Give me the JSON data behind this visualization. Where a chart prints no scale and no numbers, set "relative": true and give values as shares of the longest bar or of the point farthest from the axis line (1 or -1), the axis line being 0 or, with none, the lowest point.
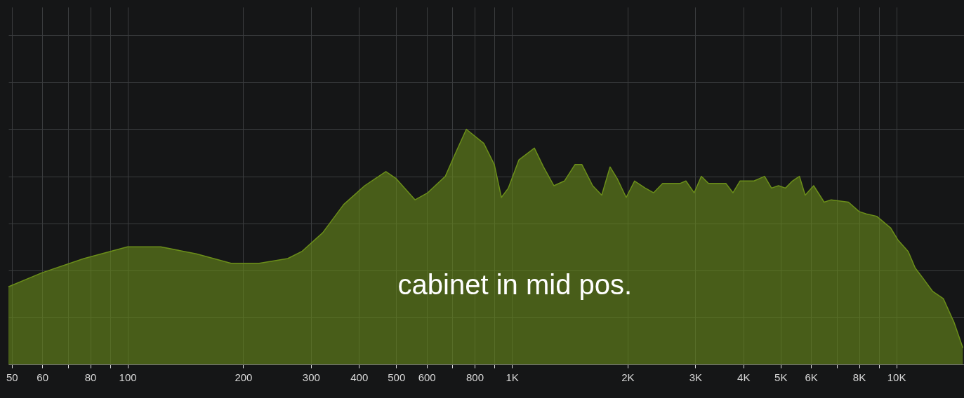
{
  "chart_data": {
    "type": "area",
    "relative": true,
    "log": "x",
    "grid": true,
    "annotations": [
      "cabinet in mid pos."
    ],
    "xlim": [
      49,
      15000
    ],
    "xticks": [
      50,
      60,
      {
        "value": 70,
        "label": null
      },
      80,
      {
        "value": 90,
        "label": null
      },
      100,
      200,
      300,
      400,
      500,
      600,
      {
        "value": 700,
        "label": null
      },
      800,
      {
        "value": 900,
        "label": null
      },
      {
        "value": 1000,
        "label": "1K"
      },
      {
        "value": 2000,
        "label": "2K"
      },
      {
        "value": 3000,
        "label": "3K"
      },
      {
        "value": 4000,
        "label": "4K"
      },
      {
        "value": 5000,
        "label": "5K"
      },
      {
        "value": 6000,
        "label": "6K"
      },
      {
        "value": 7000,
        "label": null
      },
      {
        "value": 8000,
        "label": "8K"
      },
      {
        "value": 9000,
        "label": null
      },
      {
        "value": 10000,
        "label": "10K"
      }
    ],
    "series": [
      {
        "color": "#6b8e1a",
        "x": [
          49,
          60,
          77,
          100,
          122,
          151,
          186,
          220,
          261,
          284,
          322,
          365,
          414,
          470,
          500,
          560,
          604,
          671,
          714,
          761,
          845,
          900,
          939,
          979,
          1043,
          1144,
          1208,
          1286,
          1370,
          1459,
          1521,
          1622,
          1713,
          1800,
          1879,
          1983,
          2085,
          2222,
          2337,
          2467,
          2574,
          2742,
          2836,
          2980,
          3110,
          3244,
          3453,
          3602,
          3758,
          3920,
          4264,
          4542,
          4735,
          4937,
          5148,
          5368,
          5597,
          5793,
          6095,
          6491,
          6768,
          7510,
          8000,
          8349,
          8892,
          9669,
          10090,
          10740,
          11200,
          11690,
          12440,
          13250,
          14120,
          14900
        ],
        "values": [
          0.33,
          0.39,
          0.45,
          0.5,
          0.5,
          0.47,
          0.43,
          0.43,
          0.45,
          0.48,
          0.56,
          0.68,
          0.76,
          0.82,
          0.79,
          0.7,
          0.73,
          0.8,
          0.9,
          1.0,
          0.94,
          0.85,
          0.71,
          0.75,
          0.87,
          0.92,
          0.84,
          0.76,
          0.78,
          0.85,
          0.85,
          0.76,
          0.72,
          0.84,
          0.79,
          0.71,
          0.78,
          0.75,
          0.73,
          0.77,
          0.77,
          0.77,
          0.78,
          0.73,
          0.8,
          0.77,
          0.77,
          0.77,
          0.73,
          0.78,
          0.78,
          0.8,
          0.75,
          0.76,
          0.75,
          0.78,
          0.8,
          0.72,
          0.76,
          0.69,
          0.7,
          0.69,
          0.65,
          0.64,
          0.63,
          0.58,
          0.53,
          0.48,
          0.41,
          0.37,
          0.31,
          0.28,
          0.18,
          0.07
        ]
      }
    ]
  }
}
